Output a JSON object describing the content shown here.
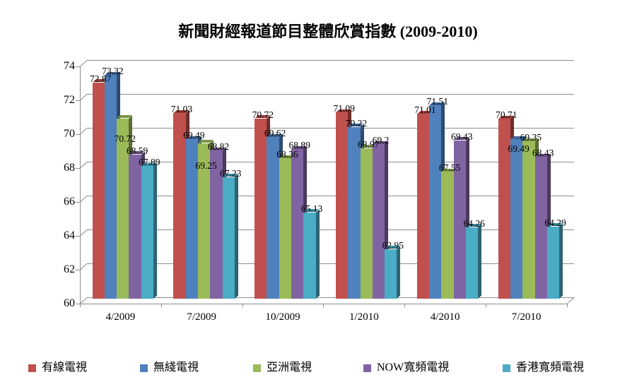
{
  "title": "新聞財經報道節目整體欣賞指數 (2009-2010)",
  "chart_data": {
    "type": "bar",
    "style": "3d-clustered-column",
    "title": "新聞財經報道節目整體欣賞指數 (2009-2010)",
    "categories": [
      "4/2009",
      "7/2009",
      "10/2009",
      "1/2010",
      "4/2010",
      "7/2010"
    ],
    "series": [
      {
        "name": "有線電視",
        "color": "#C0504D",
        "values": [
          72.87,
          71.03,
          70.72,
          71.09,
          71.01,
          70.71
        ]
      },
      {
        "name": "無綫電視",
        "color": "#4F81BD",
        "values": [
          73.32,
          69.49,
          69.62,
          70.22,
          71.51,
          69.49
        ]
      },
      {
        "name": "亞洲電視",
        "color": "#9BBB59",
        "values": [
          70.72,
          69.25,
          68.36,
          68.97,
          67.55,
          69.35
        ]
      },
      {
        "name": "NOW寬頻電視",
        "color": "#8064A2",
        "values": [
          68.59,
          68.82,
          68.89,
          69.2,
          69.43,
          68.43
        ]
      },
      {
        "name": "香港寬頻電視",
        "color": "#4BACC6",
        "values": [
          67.89,
          67.23,
          65.13,
          62.95,
          64.26,
          64.29
        ]
      }
    ],
    "xlabel": "",
    "ylabel": "",
    "ylim": [
      60,
      74
    ],
    "ytick_step": 2,
    "grid": true,
    "data_labels": true,
    "legend_position": "bottom",
    "axis_color": "#8c8c8c",
    "label_dy_overrides": [
      {
        "series": 2,
        "point": 0,
        "dy": 34
      },
      {
        "series": 2,
        "point": 1,
        "dy": 37
      },
      {
        "series": 1,
        "point": 5,
        "dy": 19
      }
    ]
  }
}
